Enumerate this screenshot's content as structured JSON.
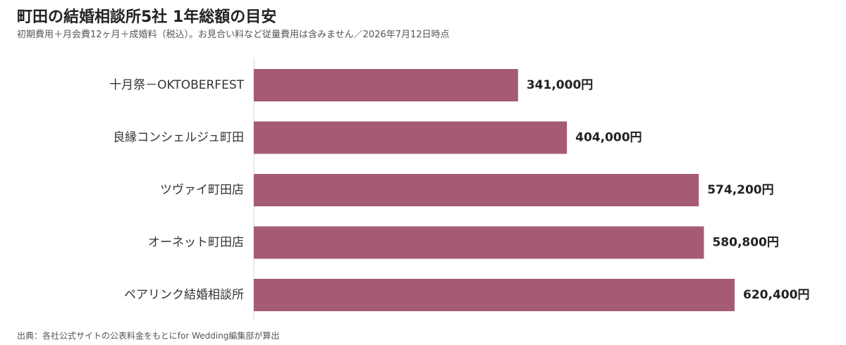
{
  "header": {
    "title": "町田の結婚相談所5社 1年総額の目安",
    "subtitle": "初期費用＋月会費12ヶ月＋成婚料（税込）。お見合い料など従量費用は含みません／2026年7月12日時点"
  },
  "footer": {
    "source": "出典：各社公式サイトの公表料金をもとにfor Wedding編集部が算出"
  },
  "colors": {
    "bar": "#A55B74",
    "axis": "#D9D9D9"
  },
  "chart_data": {
    "type": "bar",
    "orientation": "horizontal",
    "title": "町田の結婚相談所5社 1年総額の目安",
    "subtitle": "初期費用＋月会費12ヶ月＋成婚料（税込）。お見合い料など従量費用は含みません／2026年7月12日時点",
    "categories": [
      "十月祭－OKTOBERFEST",
      "良縁コンシェルジュ町田",
      "ツヴァイ町田店",
      "オーネット町田店",
      "ペアリンク結婚相談所"
    ],
    "values": [
      341000,
      404000,
      574200,
      580800,
      620400
    ],
    "value_labels": [
      "341,000円",
      "404,000円",
      "574,200円",
      "580,800円",
      "620,400円"
    ],
    "unit": "円",
    "xlim": [
      0,
      620400
    ],
    "grid": false,
    "legend": "none"
  }
}
